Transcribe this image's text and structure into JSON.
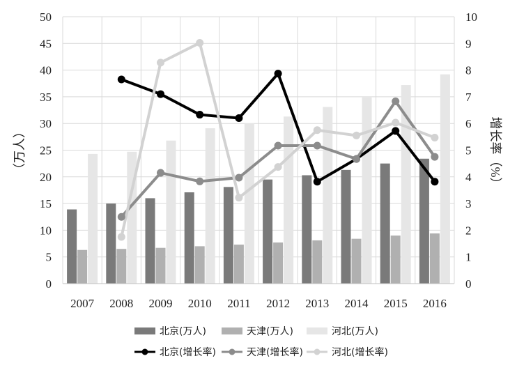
{
  "chart_data": {
    "type": "bar",
    "categories": [
      "2007",
      "2008",
      "2009",
      "2010",
      "2011",
      "2012",
      "2013",
      "2014",
      "2015",
      "2016"
    ],
    "ylabel_left": "（万人）",
    "ylabel_right": "增长率（%）",
    "ylim_left": [
      0,
      50
    ],
    "yticks_left": [
      "0",
      "5",
      "10",
      "15",
      "20",
      "25",
      "30",
      "35",
      "40",
      "45",
      "50"
    ],
    "ylim_right": [
      0,
      10
    ],
    "yticks_right": [
      "0",
      "1",
      "2",
      "3",
      "4",
      "5",
      "6",
      "7",
      "8",
      "9",
      "10"
    ],
    "grid": true,
    "legend_position": "bottom",
    "bar_series": [
      {
        "name": "北京(万人)",
        "color": "#7a7a7a",
        "values": [
          13.9,
          15.0,
          16.0,
          17.1,
          18.1,
          19.5,
          20.3,
          21.3,
          22.5,
          23.4
        ]
      },
      {
        "name": "天津(万人)",
        "color": "#b0b0b0",
        "values": [
          6.3,
          6.5,
          6.7,
          7.0,
          7.3,
          7.7,
          8.1,
          8.4,
          9.0,
          9.4
        ]
      },
      {
        "name": "河北(万人)",
        "color": "#e6e6e6",
        "values": [
          24.3,
          24.7,
          26.8,
          29.1,
          30.0,
          31.3,
          33.1,
          34.9,
          37.2,
          39.2
        ]
      }
    ],
    "line_series": [
      {
        "name": "北京(增长率)",
        "color": "#000000",
        "values": [
          null,
          7.65,
          7.1,
          6.33,
          6.2,
          7.87,
          3.82,
          4.67,
          5.72,
          3.82
        ]
      },
      {
        "name": "天津(增长率)",
        "color": "#8c8c8c",
        "values": [
          null,
          2.5,
          4.15,
          3.83,
          3.97,
          5.17,
          5.17,
          4.67,
          6.83,
          4.75
        ]
      },
      {
        "name": "河北(增长率)",
        "color": "#d2d2d2",
        "values": [
          null,
          1.75,
          8.28,
          9.02,
          3.22,
          4.37,
          5.75,
          5.55,
          6.03,
          5.47
        ]
      }
    ]
  }
}
